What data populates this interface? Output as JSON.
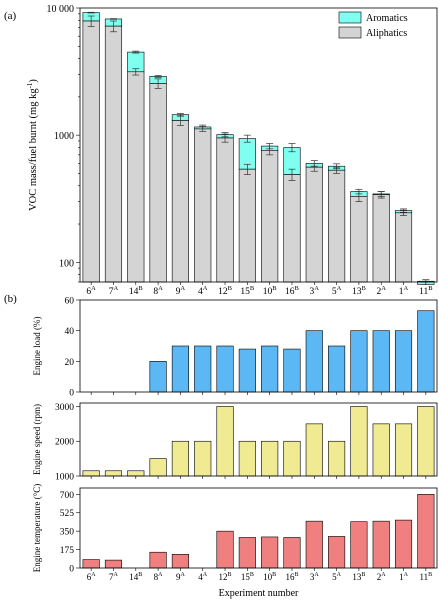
{
  "panel_labels": {
    "a": "(a)",
    "b": "(b)"
  },
  "colors": {
    "aromatics": "#7fffef",
    "aliphatics": "#d4d4d4",
    "load": "#5cb8f5",
    "speed": "#f0ea92",
    "temperature": "#f08080"
  },
  "chart_data": [
    {
      "type": "bar",
      "stacked": true,
      "y_scale": "log",
      "ylim": [
        70,
        10000
      ],
      "yticks": [
        100,
        1000,
        10000
      ],
      "ytick_labels": [
        "100",
        "1000",
        "10 000"
      ],
      "ylabel": "VOC mass/fuel burnt (mg kg",
      "ylabel_sup": "-1",
      "ylabel_close": ")",
      "legend_position": "top-right",
      "categories": [
        {
          "num": "6",
          "sup": "A"
        },
        {
          "num": "7",
          "sup": "A"
        },
        {
          "num": "14",
          "sup": "B"
        },
        {
          "num": "8",
          "sup": "A"
        },
        {
          "num": "9",
          "sup": "A"
        },
        {
          "num": "4",
          "sup": "A"
        },
        {
          "num": "12",
          "sup": "B"
        },
        {
          "num": "15",
          "sup": "B"
        },
        {
          "num": "10",
          "sup": "B"
        },
        {
          "num": "16",
          "sup": "B"
        },
        {
          "num": "3",
          "sup": "A"
        },
        {
          "num": "5",
          "sup": "A"
        },
        {
          "num": "13",
          "sup": "B"
        },
        {
          "num": "2",
          "sup": "A"
        },
        {
          "num": "1",
          "sup": "A"
        },
        {
          "num": "11",
          "sup": "B"
        }
      ],
      "series": [
        {
          "name": "Aliphatics",
          "values": [
            7900,
            7200,
            3150,
            2550,
            1300,
            1120,
            950,
            540,
            760,
            490,
            560,
            530,
            330,
            340,
            245,
            67
          ],
          "errors": [
            750,
            700,
            180,
            220,
            110,
            50,
            70,
            50,
            60,
            50,
            40,
            30,
            30,
            20,
            12,
            4
          ]
        },
        {
          "name": "Aromatics",
          "values": [
            9200,
            8200,
            4500,
            2900,
            1450,
            1160,
            1010,
            940,
            820,
            800,
            600,
            570,
            360,
            345,
            255,
            71
          ],
          "errors": [
            60,
            50,
            80,
            50,
            30,
            40,
            40,
            60,
            40,
            60,
            30,
            25,
            15,
            15,
            8,
            2
          ]
        }
      ]
    },
    {
      "type": "bar",
      "ylabel": "Engine load (%)",
      "ylim": [
        0,
        60
      ],
      "yticks": [
        0,
        20,
        40,
        60
      ],
      "values": [
        0,
        0,
        0,
        20,
        30,
        30,
        30,
        28,
        30,
        28,
        40,
        30,
        40,
        40,
        40,
        53
      ]
    },
    {
      "type": "bar",
      "ylabel": "Engine speed (rpm)",
      "ylim": [
        1000,
        3100
      ],
      "yticks": [
        1000,
        2000,
        3000
      ],
      "values": [
        1150,
        1150,
        1150,
        1500,
        2000,
        2000,
        3000,
        2000,
        2000,
        2000,
        2500,
        2000,
        3000,
        2500,
        2500,
        3000
      ]
    },
    {
      "type": "bar",
      "ylabel": "Engine temperature (°C)",
      "ylim": [
        0,
        760
      ],
      "yticks": [
        0,
        175,
        350,
        525,
        700
      ],
      "xlabel": "Experiment number",
      "values": [
        80,
        75,
        0,
        150,
        130,
        0,
        350,
        290,
        295,
        290,
        445,
        300,
        440,
        445,
        455,
        700
      ]
    }
  ]
}
